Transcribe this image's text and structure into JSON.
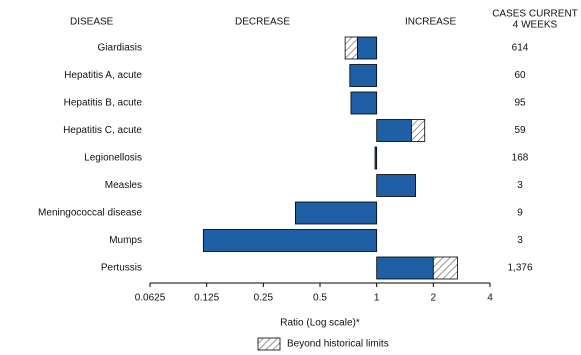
{
  "chart_data": {
    "type": "bar",
    "orientation": "horizontal",
    "log_scale": true,
    "headers": {
      "disease": "DISEASE",
      "decrease": "DECREASE",
      "increase": "INCREASE",
      "cases": [
        "CASES CURRENT",
        "4 WEEKS"
      ]
    },
    "categories": [
      "Giardiasis",
      "Hepatitis A, acute",
      "Hepatitis B, acute",
      "Hepatitis C, acute",
      "Legionellosis",
      "Measles",
      "Meningococcal disease",
      "Mumps",
      "Pertussis"
    ],
    "values": [
      0.68,
      0.72,
      0.73,
      1.8,
      0.98,
      1.61,
      0.37,
      0.12,
      2.69
    ],
    "historical_limit": [
      0.79,
      null,
      null,
      1.53,
      null,
      null,
      null,
      null,
      2.0
    ],
    "cases": [
      614,
      60,
      95,
      59,
      168,
      3,
      9,
      3,
      {
        "value": 1376,
        "label": "1,376"
      }
    ],
    "color": "#1f5fa5",
    "xlim": [
      0.0625,
      4
    ],
    "xticks": [
      0.0625,
      0.125,
      0.25,
      0.5,
      1,
      2,
      4
    ],
    "baseline": 1,
    "xlabel": "Ratio (Log scale)*",
    "legend": "Beyond historical limits"
  }
}
